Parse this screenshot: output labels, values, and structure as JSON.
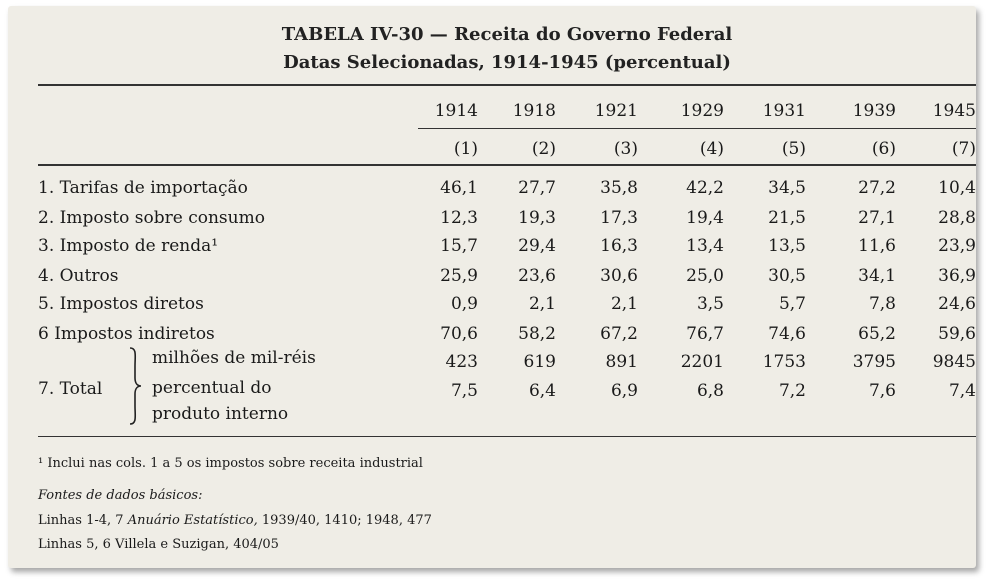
{
  "table": {
    "title": "TABELA IV-30 — Receita do Governo Federal",
    "subtitle": "Datas Selecionadas, 1914-1945 (percentual)",
    "years": [
      "1914",
      "1918",
      "1921",
      "1929",
      "1931",
      "1939",
      "1945"
    ],
    "col_numbers": [
      "(1)",
      "(2)",
      "(3)",
      "(4)",
      "(5)",
      "(6)",
      "(7)"
    ],
    "rows": [
      {
        "label": "1. Tarifas de importação",
        "values": [
          "46,1",
          "27,7",
          "35,8",
          "42,2",
          "34,5",
          "27,2",
          "10,4"
        ]
      },
      {
        "label": "2. Imposto sobre consumo",
        "values": [
          "12,3",
          "19,3",
          "17,3",
          "19,4",
          "21,5",
          "27,1",
          "28,8"
        ]
      },
      {
        "label": "3. Imposto de renda¹",
        "values": [
          "15,7",
          "29,4",
          "16,3",
          "13,4",
          "13,5",
          "11,6",
          "23,9"
        ]
      },
      {
        "label": "4. Outros",
        "values": [
          "25,9",
          "23,6",
          "30,6",
          "25,0",
          "30,5",
          "34,1",
          "36,9"
        ]
      },
      {
        "label": "5. Impostos diretos",
        "values": [
          "0,9",
          "2,1",
          "2,1",
          "3,5",
          "5,7",
          "7,8",
          "24,6"
        ]
      },
      {
        "label": "6 Impostos indiretos",
        "values": [
          "70,6",
          "58,2",
          "67,2",
          "76,7",
          "74,6",
          "65,2",
          "59,6"
        ]
      }
    ],
    "total": {
      "label": "7. Total",
      "sub1_label": "milhões de mil-réis",
      "sub1_values": [
        "423",
        "619",
        "891",
        "2201",
        "1753",
        "3795",
        "9845"
      ],
      "sub2_label_line1": "percentual do",
      "sub2_label_line2": "produto interno",
      "sub2_values": [
        "7,5",
        "6,4",
        "6,9",
        "6,8",
        "7,2",
        "7,6",
        "7,4"
      ]
    }
  },
  "footnotes": {
    "note1": "¹ Inclui nas cols. 1 a 5 os impostos sobre receita industrial",
    "sources_heading": "Fontes de dados básicos:",
    "line1_prefix": "Linhas 1-4, 7",
    "line1_source": "Anuário Estatístico,",
    "line1_suffix": "1939/40, 1410; 1948, 477",
    "line2": "Linhas 5, 6 Villela e Suzigan, 404/05"
  }
}
